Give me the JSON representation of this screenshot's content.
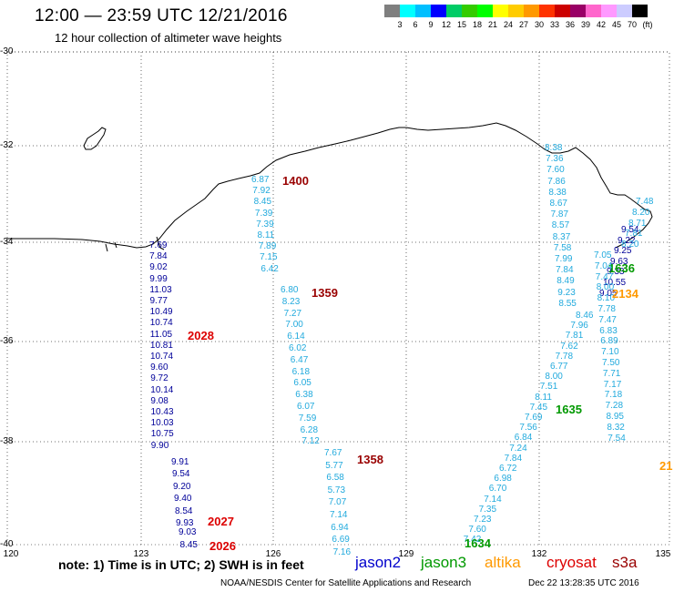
{
  "header": {
    "title": "12:00 — 23:59 UTC 12/21/2016",
    "subtitle": "12 hour collection of altimeter wave heights"
  },
  "colorbar": {
    "colors": [
      "#7f7f7f",
      "#00ffff",
      "#00bfff",
      "#0000ff",
      "#00cc66",
      "#33cc00",
      "#00ff00",
      "#ffff00",
      "#ffcc00",
      "#ff9900",
      "#ff3300",
      "#cc0000",
      "#990066",
      "#ff66cc",
      "#ff99ff",
      "#ccccff",
      "#000000"
    ],
    "labels": [
      "3",
      "6",
      "9",
      "12",
      "15",
      "18",
      "21",
      "24",
      "27",
      "30",
      "33",
      "36",
      "39",
      "42",
      "45",
      "70",
      "(ft)"
    ]
  },
  "axes": {
    "y_labels": [
      "-30",
      "-32",
      "-34",
      "-36",
      "-38",
      "-40"
    ],
    "x_labels": [
      "120",
      "123",
      "126",
      "129",
      "132",
      "135"
    ]
  },
  "tracks": [
    {
      "satellite": "jason2",
      "time": "2028",
      "color": "#000099",
      "values": [
        "7.69",
        "7.84",
        "9.02",
        "9.99",
        "11.03",
        "9.77",
        "10.49",
        "10.74",
        "11.05",
        "10.81",
        "10.74",
        "9.60",
        "9.72",
        "10.14",
        "9.08",
        "10.43",
        "10.03",
        "10.75",
        "9.90"
      ]
    },
    {
      "satellite": "jason2",
      "time": "2027",
      "color": "#000099",
      "values": [
        "9.91",
        "9.54",
        "9.20",
        "9.40",
        "8.54",
        "9.93"
      ]
    },
    {
      "satellite": "jason2",
      "time": "2026",
      "color": "#000099",
      "values": [
        "9.03",
        "8.45"
      ]
    },
    {
      "satellite": "s3a",
      "time": "1400",
      "color": "#22aadd",
      "values": [
        "6.87",
        "7.92",
        "8.45",
        "7.39",
        "7.39",
        "8.11",
        "7.89",
        "7.15",
        "6.42"
      ]
    },
    {
      "satellite": "s3a",
      "time": "1359",
      "color": "#22aadd",
      "values": [
        "6.80",
        "8.23",
        "7.27",
        "7.00",
        "6.14",
        "6.02",
        "6.47",
        "6.18",
        "6.05",
        "6.38",
        "6.07",
        "7.59",
        "6.28",
        "7.12"
      ]
    },
    {
      "satellite": "s3a",
      "time": "1358",
      "color": "#22aadd",
      "values": [
        "7.67",
        "5.77",
        "6.58",
        "5.73",
        "7.07",
        "7.14",
        "6.94",
        "6.69",
        "7.16"
      ]
    },
    {
      "satellite": "jason3",
      "time": "1635",
      "color": "#22aadd",
      "values": [
        "8.38",
        "7.36",
        "7.60",
        "7.86",
        "8.38",
        "8.67",
        "7.87",
        "8.57",
        "8.37",
        "7.58",
        "7.99",
        "7.84",
        "8.49",
        "9.23",
        "8.55",
        "8.46",
        "7.96",
        "7.81",
        "7.62",
        "7.78",
        "6.77",
        "8.00",
        "7.51",
        "8.11",
        "7.45",
        "7.69",
        "7.56",
        "6.84",
        "7.24",
        "7.84",
        "6.72",
        "6.98",
        "6.70",
        "7.14",
        "7.35",
        "7.23",
        "7.60",
        "7.42"
      ]
    },
    {
      "satellite": "jason3",
      "time": "1634",
      "color": "#22aadd",
      "values": []
    },
    {
      "satellite": "jason3",
      "time": "1636",
      "color": "#000099",
      "values": [
        "9.54",
        "9.22",
        "9.25",
        "9.63",
        "9.33",
        "10.55",
        "9.05"
      ]
    },
    {
      "satellite": "altika",
      "time": "2134",
      "color": "#22aadd",
      "values": [
        "7.48",
        "8.20",
        "8.71",
        "7.81",
        "8.20",
        "7.05",
        "7.04",
        "7.47",
        "8.00",
        "8.10",
        "7.78",
        "7.47",
        "6.83",
        "6.89",
        "7.10",
        "7.50",
        "7.71",
        "7.17",
        "7.18",
        "7.28",
        "8.95",
        "8.32",
        "7.54"
      ]
    }
  ],
  "satellites": [
    {
      "name": "jason2",
      "color": "#0000cc"
    },
    {
      "name": "jason3",
      "color": "#009900"
    },
    {
      "name": "altika",
      "color": "#ff9900"
    },
    {
      "name": "cryosat",
      "color": "#dd0000"
    },
    {
      "name": "s3a",
      "color": "#990000"
    }
  ],
  "footer": {
    "note": "note: 1) Time is in UTC; 2) SWH is in feet",
    "credit": "NOAA/NESDIS Center for Satellite Applications and Research",
    "generated": "Dec 22 13:28:35 UTC 2016"
  },
  "cut_label": "21"
}
